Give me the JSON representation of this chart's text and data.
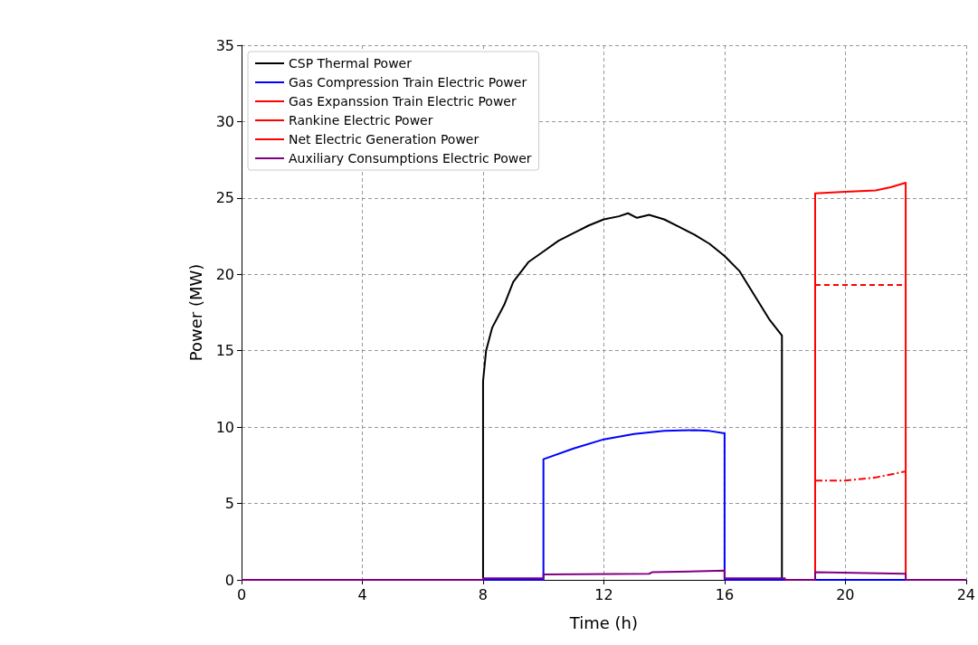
{
  "chart_data": {
    "type": "line",
    "xlabel": "Time (h)",
    "ylabel": "Power (MW)",
    "xlim": [
      0,
      24
    ],
    "xticks": [
      0,
      4,
      8,
      12,
      16,
      20,
      24
    ],
    "ylim": [
      0,
      35
    ],
    "yticks": [
      0,
      5,
      10,
      15,
      20,
      25,
      30,
      35
    ],
    "grid": true,
    "legend": "top left",
    "marker": "none",
    "series": [
      {
        "name": "CSP Thermal Power",
        "color": "#000000",
        "line_style": "solid",
        "x": [
          0,
          8,
          8,
          8.1,
          8.3,
          8.7,
          9,
          9.5,
          10,
          10.5,
          11,
          11.5,
          12,
          12.5,
          12.8,
          13.1,
          13.5,
          14,
          14.5,
          15,
          15.5,
          16,
          16.5,
          17,
          17.5,
          17.9,
          17.9,
          24
        ],
        "values": [
          0,
          0,
          13,
          15,
          16.5,
          18,
          19.5,
          20.8,
          21.5,
          22.2,
          22.7,
          23.2,
          23.6,
          23.8,
          24,
          23.7,
          23.9,
          23.6,
          23.1,
          22.6,
          22,
          21.2,
          20.2,
          18.6,
          17,
          16,
          0,
          0
        ]
      },
      {
        "name": "Gas Compression Train Electric Power",
        "color": "#0000ff",
        "line_style": "solid",
        "x": [
          0,
          10,
          10,
          11,
          12,
          13,
          14,
          15,
          15.5,
          16,
          16,
          24
        ],
        "values": [
          0,
          0,
          7.9,
          8.6,
          9.2,
          9.55,
          9.75,
          9.8,
          9.75,
          9.6,
          0,
          0
        ]
      },
      {
        "name": "Gas Expanssion Train Electric Power",
        "color": "#ff0000",
        "line_style": "dashed",
        "x": [
          19,
          22
        ],
        "values": [
          19.3,
          19.3
        ]
      },
      {
        "name": "Rankine Electric Power",
        "color": "#ff0000",
        "line_style": "dashdot",
        "x": [
          19,
          20,
          21,
          22
        ],
        "values": [
          6.5,
          6.5,
          6.7,
          7.1
        ]
      },
      {
        "name": "Net Electric Generation Power",
        "color": "#ff0000",
        "line_style": "solid",
        "x": [
          19,
          19,
          20,
          21,
          21.5,
          22,
          22
        ],
        "values": [
          0,
          25.3,
          25.4,
          25.5,
          25.7,
          26,
          0
        ]
      },
      {
        "name": "Auxiliary Consumptions Electric Power",
        "color": "#800080",
        "line_style": "solid",
        "x": [
          0,
          8,
          8,
          10,
          10,
          13.5,
          13.6,
          16,
          16,
          18,
          18,
          19,
          19,
          22,
          22,
          24
        ],
        "values": [
          0,
          0,
          0.1,
          0.1,
          0.35,
          0.4,
          0.5,
          0.6,
          0.1,
          0.1,
          0,
          0,
          0.5,
          0.4,
          0,
          0
        ]
      }
    ]
  }
}
